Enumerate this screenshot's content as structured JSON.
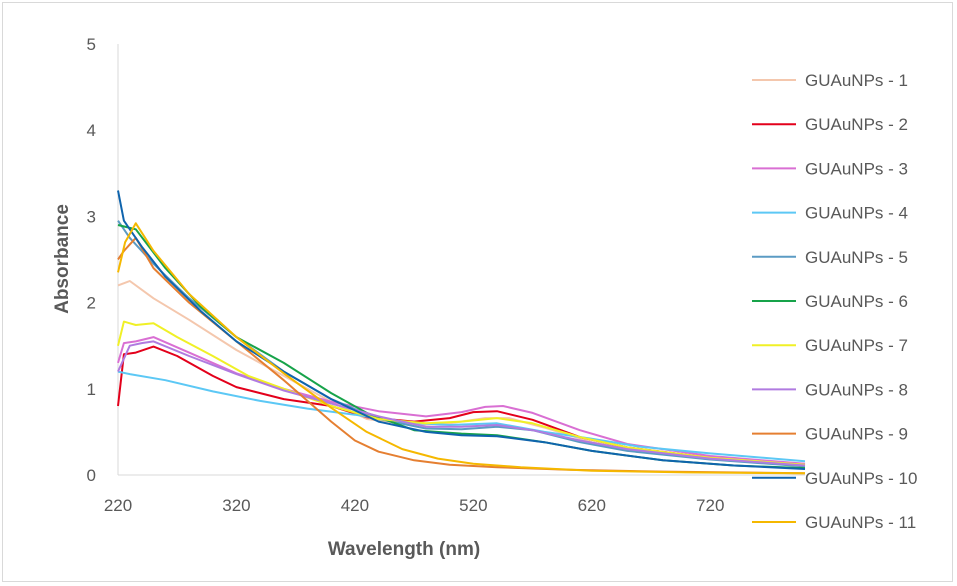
{
  "chart_data": {
    "type": "line",
    "title": "",
    "xlabel": "Wavelength (nm)",
    "ylabel": "Absorbance",
    "xlim": [
      220,
      800
    ],
    "ylim": [
      0,
      5
    ],
    "xticks": [
      220,
      320,
      420,
      520,
      620,
      720
    ],
    "yticks": [
      0,
      1,
      2,
      3,
      4,
      5
    ],
    "grid": false,
    "legend_position": "right",
    "series": [
      {
        "name": "GUAuNPs - 1",
        "color": "#f4c7ad",
        "points": [
          [
            220,
            2.2
          ],
          [
            230,
            2.25
          ],
          [
            250,
            2.05
          ],
          [
            280,
            1.8
          ],
          [
            320,
            1.45
          ],
          [
            360,
            1.15
          ],
          [
            400,
            0.85
          ],
          [
            430,
            0.65
          ],
          [
            470,
            0.58
          ],
          [
            500,
            0.6
          ],
          [
            530,
            0.66
          ],
          [
            550,
            0.66
          ],
          [
            580,
            0.55
          ],
          [
            620,
            0.38
          ],
          [
            660,
            0.28
          ],
          [
            720,
            0.19
          ],
          [
            800,
            0.12
          ]
        ]
      },
      {
        "name": "GUAuNPs - 2",
        "color": "#e3001b",
        "points": [
          [
            220,
            0.8
          ],
          [
            225,
            1.4
          ],
          [
            235,
            1.42
          ],
          [
            250,
            1.49
          ],
          [
            270,
            1.38
          ],
          [
            300,
            1.15
          ],
          [
            320,
            1.02
          ],
          [
            360,
            0.88
          ],
          [
            400,
            0.8
          ],
          [
            430,
            0.67
          ],
          [
            470,
            0.62
          ],
          [
            500,
            0.66
          ],
          [
            520,
            0.73
          ],
          [
            540,
            0.74
          ],
          [
            570,
            0.64
          ],
          [
            610,
            0.44
          ],
          [
            650,
            0.32
          ],
          [
            720,
            0.2
          ],
          [
            800,
            0.12
          ]
        ]
      },
      {
        "name": "GUAuNPs - 3",
        "color": "#d96fd3",
        "points": [
          [
            220,
            1.3
          ],
          [
            225,
            1.53
          ],
          [
            235,
            1.55
          ],
          [
            250,
            1.6
          ],
          [
            280,
            1.42
          ],
          [
            320,
            1.18
          ],
          [
            360,
            1.0
          ],
          [
            400,
            0.85
          ],
          [
            440,
            0.74
          ],
          [
            480,
            0.68
          ],
          [
            510,
            0.73
          ],
          [
            530,
            0.79
          ],
          [
            545,
            0.8
          ],
          [
            570,
            0.72
          ],
          [
            610,
            0.52
          ],
          [
            650,
            0.36
          ],
          [
            720,
            0.22
          ],
          [
            800,
            0.13
          ]
        ]
      },
      {
        "name": "GUAuNPs - 4",
        "color": "#5cc8f5",
        "points": [
          [
            220,
            1.2
          ],
          [
            230,
            1.17
          ],
          [
            260,
            1.1
          ],
          [
            300,
            0.97
          ],
          [
            340,
            0.86
          ],
          [
            380,
            0.77
          ],
          [
            420,
            0.7
          ],
          [
            460,
            0.61
          ],
          [
            500,
            0.58
          ],
          [
            540,
            0.6
          ],
          [
            580,
            0.5
          ],
          [
            620,
            0.42
          ],
          [
            660,
            0.33
          ],
          [
            720,
            0.25
          ],
          [
            800,
            0.16
          ]
        ]
      },
      {
        "name": "GUAuNPs - 5",
        "color": "#5b9bc4",
        "points": [
          [
            220,
            2.95
          ],
          [
            230,
            2.75
          ],
          [
            250,
            2.45
          ],
          [
            280,
            2.05
          ],
          [
            320,
            1.6
          ],
          [
            360,
            1.2
          ],
          [
            400,
            0.88
          ],
          [
            440,
            0.65
          ],
          [
            480,
            0.54
          ],
          [
            510,
            0.53
          ],
          [
            540,
            0.56
          ],
          [
            570,
            0.52
          ],
          [
            610,
            0.38
          ],
          [
            650,
            0.28
          ],
          [
            720,
            0.18
          ],
          [
            800,
            0.1
          ]
        ]
      },
      {
        "name": "GUAuNPs - 6",
        "color": "#17a34a",
        "points": [
          [
            220,
            2.9
          ],
          [
            235,
            2.85
          ],
          [
            260,
            2.4
          ],
          [
            290,
            1.95
          ],
          [
            320,
            1.6
          ],
          [
            360,
            1.3
          ],
          [
            400,
            0.95
          ],
          [
            430,
            0.72
          ],
          [
            470,
            0.52
          ],
          [
            510,
            0.48
          ],
          [
            540,
            0.46
          ],
          [
            580,
            0.38
          ],
          [
            620,
            0.28
          ],
          [
            680,
            0.17
          ],
          [
            740,
            0.11
          ],
          [
            800,
            0.08
          ]
        ]
      },
      {
        "name": "GUAuNPs - 7",
        "color": "#f0f026",
        "points": [
          [
            220,
            1.5
          ],
          [
            225,
            1.78
          ],
          [
            235,
            1.74
          ],
          [
            250,
            1.76
          ],
          [
            270,
            1.6
          ],
          [
            300,
            1.38
          ],
          [
            330,
            1.15
          ],
          [
            360,
            1.0
          ],
          [
            400,
            0.8
          ],
          [
            440,
            0.65
          ],
          [
            480,
            0.6
          ],
          [
            510,
            0.62
          ],
          [
            540,
            0.66
          ],
          [
            570,
            0.6
          ],
          [
            610,
            0.44
          ],
          [
            650,
            0.32
          ],
          [
            720,
            0.2
          ],
          [
            800,
            0.12
          ]
        ]
      },
      {
        "name": "GUAuNPs - 8",
        "color": "#b07be0",
        "points": [
          [
            220,
            1.2
          ],
          [
            230,
            1.5
          ],
          [
            240,
            1.53
          ],
          [
            250,
            1.55
          ],
          [
            280,
            1.38
          ],
          [
            320,
            1.17
          ],
          [
            360,
            0.98
          ],
          [
            400,
            0.83
          ],
          [
            440,
            0.68
          ],
          [
            480,
            0.56
          ],
          [
            510,
            0.56
          ],
          [
            540,
            0.58
          ],
          [
            570,
            0.52
          ],
          [
            610,
            0.4
          ],
          [
            650,
            0.3
          ],
          [
            720,
            0.19
          ],
          [
            800,
            0.11
          ]
        ]
      },
      {
        "name": "GUAuNPs - 9",
        "color": "#e57f31",
        "points": [
          [
            220,
            2.5
          ],
          [
            225,
            2.6
          ],
          [
            235,
            2.75
          ],
          [
            250,
            2.4
          ],
          [
            280,
            2.0
          ],
          [
            320,
            1.55
          ],
          [
            360,
            1.1
          ],
          [
            400,
            0.62
          ],
          [
            420,
            0.4
          ],
          [
            440,
            0.27
          ],
          [
            470,
            0.17
          ],
          [
            500,
            0.12
          ],
          [
            540,
            0.09
          ],
          [
            600,
            0.06
          ],
          [
            680,
            0.04
          ],
          [
            800,
            0.02
          ]
        ]
      },
      {
        "name": "GUAuNPs - 10",
        "color": "#0f64ad",
        "points": [
          [
            220,
            3.3
          ],
          [
            225,
            2.95
          ],
          [
            240,
            2.65
          ],
          [
            260,
            2.3
          ],
          [
            290,
            1.9
          ],
          [
            320,
            1.55
          ],
          [
            360,
            1.2
          ],
          [
            400,
            0.88
          ],
          [
            440,
            0.62
          ],
          [
            480,
            0.5
          ],
          [
            510,
            0.46
          ],
          [
            540,
            0.45
          ],
          [
            580,
            0.38
          ],
          [
            620,
            0.28
          ],
          [
            680,
            0.17
          ],
          [
            740,
            0.11
          ],
          [
            800,
            0.07
          ]
        ]
      },
      {
        "name": "GUAuNPs - 11",
        "color": "#f5b800",
        "points": [
          [
            220,
            2.35
          ],
          [
            226,
            2.7
          ],
          [
            235,
            2.92
          ],
          [
            250,
            2.6
          ],
          [
            280,
            2.1
          ],
          [
            320,
            1.6
          ],
          [
            360,
            1.18
          ],
          [
            400,
            0.78
          ],
          [
            430,
            0.5
          ],
          [
            460,
            0.3
          ],
          [
            490,
            0.19
          ],
          [
            520,
            0.13
          ],
          [
            560,
            0.09
          ],
          [
            620,
            0.05
          ],
          [
            700,
            0.03
          ],
          [
            800,
            0.02
          ]
        ]
      }
    ]
  }
}
